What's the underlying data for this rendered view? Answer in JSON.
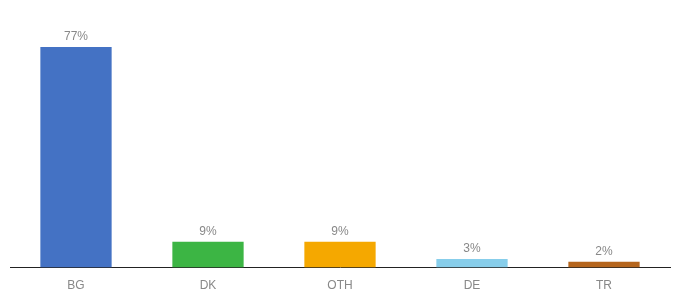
{
  "chart_data": {
    "type": "bar",
    "categories": [
      "BG",
      "DK",
      "OTH",
      "DE",
      "TR"
    ],
    "values": [
      77,
      9,
      9,
      3,
      2
    ],
    "value_labels": [
      "77%",
      "9%",
      "9%",
      "3%",
      "2%"
    ],
    "colors": [
      "#4472c4",
      "#3cb544",
      "#f5a800",
      "#87ceeb",
      "#b5651d"
    ],
    "ylim": [
      0,
      85
    ],
    "grid": false,
    "data_labels": true,
    "tick_labels": "x"
  }
}
